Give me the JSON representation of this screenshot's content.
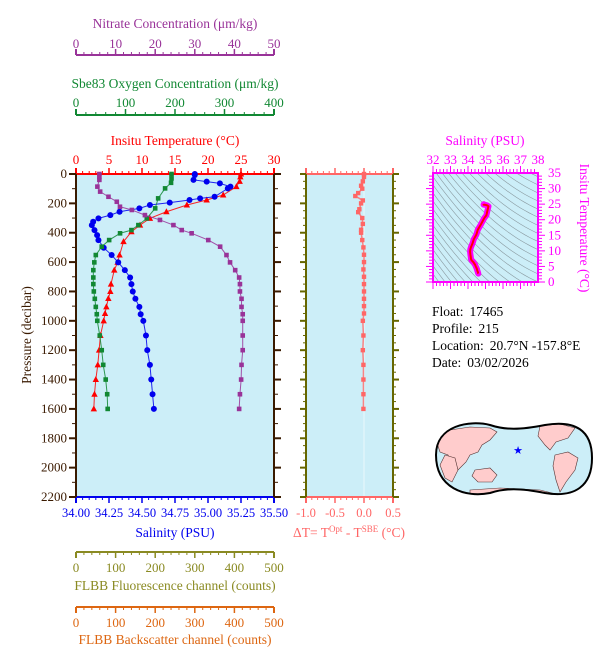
{
  "chart_data": [
    {
      "type": "line",
      "panel": "profile",
      "y_axis": {
        "label": "Pressure (decibar)",
        "range": [
          0,
          2200
        ],
        "inverted": true,
        "ticks": [
          "0",
          "200",
          "400",
          "600",
          "800",
          "1000",
          "1200",
          "1400",
          "1600",
          "1800",
          "2000",
          "2200"
        ],
        "color": "#3a1a00"
      },
      "axes": {
        "nitrate": {
          "label": "Nitrate Concentration (μm/kg)",
          "range": [
            0,
            50
          ],
          "ticks": [
            "0",
            "10",
            "20",
            "30",
            "40",
            "50"
          ],
          "color": "#993399"
        },
        "oxygen": {
          "label": "Sbe83 Oxygen Concentration (μm/kg)",
          "range": [
            0,
            400
          ],
          "ticks": [
            "0",
            "100",
            "200",
            "300",
            "400"
          ],
          "color": "#118833"
        },
        "temperature": {
          "label": "Insitu Temperature (°C)",
          "range": [
            0,
            30
          ],
          "ticks": [
            "0",
            "5",
            "10",
            "15",
            "20",
            "25",
            "30"
          ],
          "color": "#ff0000"
        },
        "salinity": {
          "label": "Salinity (PSU)",
          "range": [
            34.0,
            35.5
          ],
          "ticks": [
            "34.00",
            "34.25",
            "34.50",
            "34.75",
            "35.00",
            "35.25",
            "35.50"
          ],
          "color": "#0000ee"
        },
        "fluorescence": {
          "label": "FLBB Fluorescence channel (counts)",
          "range": [
            0,
            500
          ],
          "ticks": [
            "0",
            "100",
            "200",
            "300",
            "400",
            "500"
          ],
          "color": "#8a8a22"
        },
        "backscatter": {
          "label": "FLBB Backscatter channel (counts)",
          "range": [
            0,
            500
          ],
          "ticks": [
            "0",
            "100",
            "200",
            "300",
            "400",
            "500"
          ],
          "color": "#dd6611"
        }
      },
      "series": [
        {
          "key": "temperature",
          "marker": "triangle",
          "pressure": [
            0,
            20,
            50,
            86,
            143,
            177,
            211,
            257,
            302,
            348,
            393,
            461,
            552,
            602,
            655,
            750,
            800,
            848,
            905,
            950,
            1000,
            1100,
            1200,
            1300,
            1400,
            1500,
            1600
          ],
          "values": [
            25.0,
            24.9,
            24.8,
            24.3,
            22.3,
            19.8,
            16.8,
            13.7,
            11.2,
            9.7,
            8.4,
            7.2,
            6.6,
            6.3,
            5.8,
            5.3,
            5.2,
            4.9,
            4.6,
            4.4,
            4.2,
            3.7,
            3.5,
            3.3,
            3.0,
            2.8,
            2.7
          ]
        },
        {
          "key": "salinity",
          "marker": "circle",
          "pressure": [
            0,
            7,
            40,
            52,
            64,
            86,
            98,
            155,
            166,
            177,
            195,
            211,
            234,
            257,
            280,
            302,
            325,
            348,
            382,
            416,
            450,
            502,
            552,
            602,
            655,
            705,
            750,
            800,
            850,
            905,
            955,
            1000,
            1100,
            1200,
            1300,
            1400,
            1500,
            1600
          ],
          "values": [
            34.9,
            34.9,
            34.89,
            34.99,
            35.09,
            35.17,
            35.15,
            35.05,
            34.94,
            34.86,
            34.71,
            34.56,
            34.48,
            34.33,
            34.26,
            34.17,
            34.13,
            34.12,
            34.14,
            34.16,
            34.17,
            34.21,
            34.27,
            34.32,
            34.37,
            34.41,
            34.42,
            34.43,
            34.45,
            34.48,
            34.49,
            34.51,
            34.53,
            34.54,
            34.56,
            34.57,
            34.58,
            34.59
          ]
        },
        {
          "key": "oxygen",
          "marker": "square",
          "pressure": [
            0,
            30,
            60,
            98,
            166,
            234,
            302,
            348,
            382,
            404,
            450,
            495,
            552,
            602,
            655,
            705,
            750,
            800,
            850,
            905,
            955,
            1000,
            1100,
            1200,
            1300,
            1400,
            1500,
            1600
          ],
          "values": [
            193,
            193,
            192,
            180,
            166,
            160,
            143,
            126,
            112,
            89,
            67,
            52,
            40,
            37,
            35,
            35,
            35,
            36,
            38,
            40,
            42,
            43,
            48,
            52,
            55,
            60,
            63,
            64
          ]
        },
        {
          "key": "nitrate",
          "marker": "square",
          "pressure": [
            0,
            20,
            40,
            86,
            120,
            155,
            189,
            223,
            245,
            280,
            313,
            348,
            382,
            404,
            450,
            495,
            552,
            602,
            655,
            705,
            750,
            800,
            850,
            905,
            955,
            1000,
            1100,
            1200,
            1300,
            1400,
            1500,
            1600
          ],
          "values": [
            5.9,
            5.9,
            5.9,
            5.4,
            6.1,
            8.2,
            10.3,
            11.1,
            14.1,
            17.4,
            21.2,
            24.6,
            26.7,
            29.2,
            33.4,
            36.4,
            38.0,
            38.9,
            40.2,
            41.2,
            41.4,
            41.4,
            41.8,
            41.8,
            42.1,
            42.1,
            42.1,
            42.1,
            41.8,
            41.7,
            41.4,
            41.2
          ]
        }
      ]
    },
    {
      "type": "line",
      "panel": "delta-t",
      "x_axis": {
        "label_parts": [
          "ΔT= T",
          "Opt",
          " - T",
          "SBE",
          " (°C)"
        ],
        "range": [
          -1.0,
          0.5
        ],
        "ticks": [
          "-1.0",
          "-0.5",
          "0.0",
          "0.5"
        ],
        "color": "#ff6666"
      },
      "y_range": [
        0,
        2200
      ],
      "pressure": [
        0,
        20,
        50,
        80,
        100,
        130,
        150,
        180,
        200,
        240,
        260,
        300,
        340,
        380,
        400,
        450,
        500,
        550,
        600,
        650,
        700,
        750,
        800,
        850,
        900,
        950,
        1000,
        1100,
        1200,
        1300,
        1400,
        1500,
        1600
      ],
      "values": [
        0.0,
        0.0,
        -0.02,
        -0.05,
        -0.03,
        -0.1,
        -0.15,
        -0.02,
        -0.05,
        -0.08,
        -0.1,
        -0.03,
        -0.02,
        -0.05,
        -0.05,
        -0.03,
        -0.01,
        0.0,
        0.0,
        -0.01,
        0.0,
        0.0,
        0.0,
        0.0,
        0.0,
        0.0,
        -0.02,
        -0.01,
        -0.02,
        -0.01,
        -0.01,
        -0.01,
        -0.01
      ]
    },
    {
      "type": "line",
      "panel": "t-s-diagram",
      "x_axis": {
        "label": "Salinity (PSU)",
        "range": [
          32,
          38
        ],
        "ticks": [
          "32",
          "33",
          "34",
          "35",
          "36",
          "37",
          "38"
        ]
      },
      "y_axis": {
        "label": "Insitu Temperature (°C)",
        "range": [
          0,
          35
        ],
        "ticks": [
          "0",
          "5",
          "10",
          "15",
          "20",
          "25",
          "30",
          "35"
        ]
      },
      "color": "#ff00ff",
      "line_color": "#ff0000",
      "density_contours": true
    }
  ],
  "info": {
    "float_label": "Float:",
    "float": "17465",
    "profile_label": "Profile:",
    "profile": "215",
    "location_label": "Location:",
    "location": "20.7°N  -157.8°E",
    "date_label": "Date:",
    "date": "03/02/2026"
  },
  "map": {
    "marker": "star",
    "lat": 20.7,
    "lon": -157.8,
    "marker_color": "#0000ff",
    "land_color": "#ffcccc",
    "ocean_color": "#cceef8"
  },
  "colors": {
    "plot_background": "#cceef8",
    "panel_axis": "#666600"
  }
}
